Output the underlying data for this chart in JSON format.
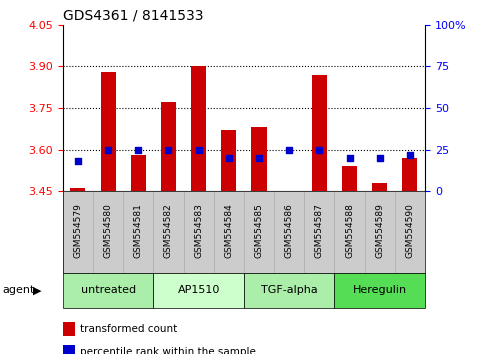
{
  "title": "GDS4361 / 8141533",
  "samples": [
    "GSM554579",
    "GSM554580",
    "GSM554581",
    "GSM554582",
    "GSM554583",
    "GSM554584",
    "GSM554585",
    "GSM554586",
    "GSM554587",
    "GSM554588",
    "GSM554589",
    "GSM554590"
  ],
  "transformed_count": [
    3.46,
    3.88,
    3.58,
    3.77,
    3.9,
    3.67,
    3.68,
    3.45,
    3.87,
    3.54,
    3.48,
    3.57
  ],
  "percentile_rank": [
    18,
    25,
    25,
    25,
    25,
    20,
    20,
    25,
    25,
    20,
    20,
    22
  ],
  "agents": [
    {
      "label": "untreated",
      "start": 0,
      "end": 3,
      "color": "#aaeeaa"
    },
    {
      "label": "AP1510",
      "start": 3,
      "end": 6,
      "color": "#ccffcc"
    },
    {
      "label": "TGF-alpha",
      "start": 6,
      "end": 9,
      "color": "#aaeeaa"
    },
    {
      "label": "Heregulin",
      "start": 9,
      "end": 12,
      "color": "#55dd55"
    }
  ],
  "ylim_left": [
    3.45,
    4.05
  ],
  "ylim_right": [
    0,
    100
  ],
  "yticks_left": [
    3.45,
    3.6,
    3.75,
    3.9,
    4.05
  ],
  "yticks_right": [
    0,
    25,
    50,
    75,
    100
  ],
  "bar_color": "#cc0000",
  "dot_color": "#0000cc",
  "bar_bottom": 3.45,
  "bar_width": 0.5,
  "dot_size": 25,
  "hgrid_vals": [
    3.6,
    3.75,
    3.9
  ],
  "legend_items": [
    {
      "color": "#cc0000",
      "label": "transformed count"
    },
    {
      "color": "#0000cc",
      "label": "percentile rank within the sample"
    }
  ],
  "gray_band_color": "#cccccc",
  "agent_arrow_color": "#333333",
  "figure_bg": "#ffffff"
}
